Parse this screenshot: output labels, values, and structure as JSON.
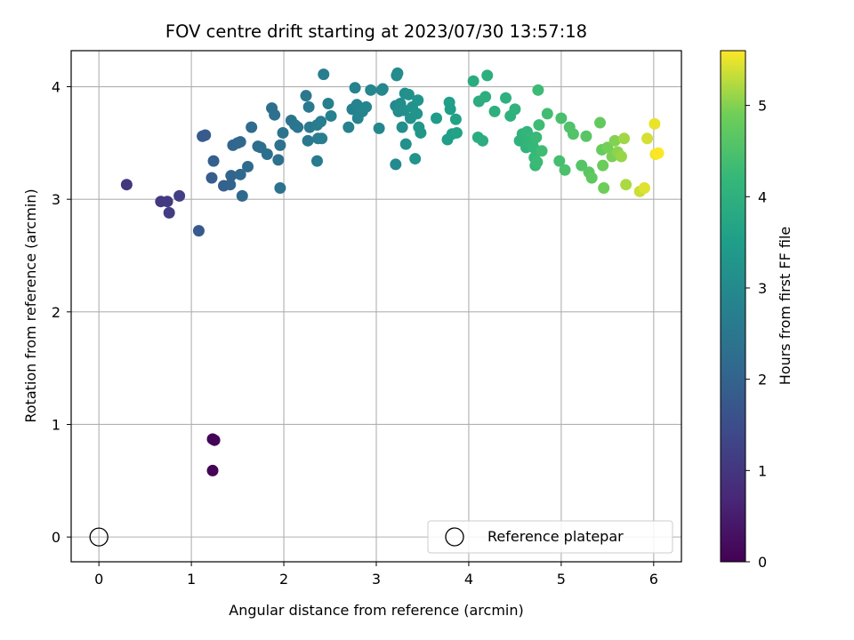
{
  "chart_data": {
    "type": "scatter",
    "title": "FOV centre drift starting at 2023/07/30 13:57:18",
    "xlabel": "Angular distance from reference (arcmin)",
    "ylabel": "Rotation from reference (arcmin)",
    "xlim": [
      -0.3,
      6.3
    ],
    "ylim": [
      -0.22,
      4.32
    ],
    "xticks": [
      "0",
      "1",
      "2",
      "3",
      "4",
      "5",
      "6"
    ],
    "yticks": [
      "0",
      "1",
      "2",
      "3",
      "4"
    ],
    "grid": true,
    "legend": {
      "placement": "lower-right",
      "label": "Reference platepar"
    },
    "reference_point": {
      "x": 0,
      "y": 0
    },
    "colorbar": {
      "label": "Hours from first FF file",
      "colormap": "viridis",
      "range": [
        0,
        5.6
      ],
      "ticks": [
        "0",
        "1",
        "2",
        "3",
        "4",
        "5"
      ]
    },
    "series": [
      {
        "points": [
          [
            1.23,
            0.59,
            0.05
          ],
          [
            1.23,
            0.87,
            0.06
          ],
          [
            1.25,
            0.86,
            0.08
          ],
          [
            0.3,
            3.13,
            1.0
          ],
          [
            0.67,
            2.98,
            1.05
          ],
          [
            0.74,
            2.98,
            1.1
          ],
          [
            0.76,
            2.88,
            1.15
          ],
          [
            0.87,
            3.03,
            1.2
          ],
          [
            1.08,
            2.72,
            1.75
          ],
          [
            1.12,
            3.56,
            1.78
          ],
          [
            1.15,
            3.57,
            1.8
          ],
          [
            1.22,
            3.19,
            1.85
          ],
          [
            1.24,
            3.34,
            1.9
          ],
          [
            1.35,
            3.12,
            1.95
          ],
          [
            1.42,
            3.13,
            2.0
          ],
          [
            1.43,
            3.21,
            2.02
          ],
          [
            1.45,
            3.48,
            2.05
          ],
          [
            1.5,
            3.5,
            2.08
          ],
          [
            1.53,
            3.51,
            2.1
          ],
          [
            1.53,
            3.22,
            2.12
          ],
          [
            1.55,
            3.03,
            2.14
          ],
          [
            1.61,
            3.29,
            2.16
          ],
          [
            1.65,
            3.64,
            2.2
          ],
          [
            1.72,
            3.47,
            2.24
          ],
          [
            1.75,
            3.46,
            2.26
          ],
          [
            1.82,
            3.4,
            2.28
          ],
          [
            1.87,
            3.81,
            2.3
          ],
          [
            1.9,
            3.75,
            2.32
          ],
          [
            1.94,
            3.35,
            2.34
          ],
          [
            1.96,
            3.48,
            2.36
          ],
          [
            1.96,
            3.1,
            2.38
          ],
          [
            1.99,
            3.59,
            2.4
          ],
          [
            2.08,
            3.7,
            2.42
          ],
          [
            2.12,
            3.66,
            2.45
          ],
          [
            2.15,
            3.64,
            2.48
          ],
          [
            2.24,
            3.92,
            2.5
          ],
          [
            2.26,
            3.52,
            2.52
          ],
          [
            2.27,
            3.82,
            2.55
          ],
          [
            2.28,
            3.64,
            2.57
          ],
          [
            2.36,
            3.66,
            2.6
          ],
          [
            2.36,
            3.34,
            2.62
          ],
          [
            2.37,
            3.54,
            2.64
          ],
          [
            2.4,
            3.69,
            2.66
          ],
          [
            2.41,
            3.54,
            2.68
          ],
          [
            2.43,
            4.11,
            2.7
          ],
          [
            2.48,
            3.85,
            2.72
          ],
          [
            2.51,
            3.74,
            2.74
          ],
          [
            2.7,
            3.64,
            2.76
          ],
          [
            2.74,
            3.8,
            2.78
          ],
          [
            2.77,
            3.99,
            2.8
          ],
          [
            2.79,
            3.84,
            2.82
          ],
          [
            2.8,
            3.72,
            2.84
          ],
          [
            2.85,
            3.78,
            2.86
          ],
          [
            2.89,
            3.82,
            2.88
          ],
          [
            2.94,
            3.97,
            2.9
          ],
          [
            3.03,
            3.63,
            2.92
          ],
          [
            3.06,
            3.97,
            2.94
          ],
          [
            3.07,
            3.98,
            2.96
          ],
          [
            3.21,
            3.83,
            2.98
          ],
          [
            3.21,
            3.31,
            3.0
          ],
          [
            3.22,
            4.1,
            3.02
          ],
          [
            3.23,
            4.12,
            3.04
          ],
          [
            3.24,
            3.78,
            3.06
          ],
          [
            3.26,
            3.85,
            3.08
          ],
          [
            3.28,
            3.64,
            3.1
          ],
          [
            3.3,
            3.79,
            3.12
          ],
          [
            3.31,
            3.94,
            3.14
          ],
          [
            3.32,
            3.49,
            3.16
          ],
          [
            3.35,
            3.93,
            3.18
          ],
          [
            3.37,
            3.72,
            3.2
          ],
          [
            3.39,
            3.82,
            3.22
          ],
          [
            3.42,
            3.36,
            3.24
          ],
          [
            3.44,
            3.76,
            3.26
          ],
          [
            3.45,
            3.88,
            3.28
          ],
          [
            3.46,
            3.64,
            3.3
          ],
          [
            3.48,
            3.59,
            3.32
          ],
          [
            3.65,
            3.72,
            3.45
          ],
          [
            3.77,
            3.53,
            3.5
          ],
          [
            3.79,
            3.86,
            3.52
          ],
          [
            3.8,
            3.8,
            3.54
          ],
          [
            3.82,
            3.58,
            3.56
          ],
          [
            3.86,
            3.71,
            3.58
          ],
          [
            3.87,
            3.59,
            3.6
          ],
          [
            4.05,
            4.05,
            3.85
          ],
          [
            4.1,
            3.55,
            3.88
          ],
          [
            4.11,
            3.87,
            3.9
          ],
          [
            4.15,
            3.52,
            3.92
          ],
          [
            4.18,
            3.91,
            3.94
          ],
          [
            4.2,
            4.1,
            3.96
          ],
          [
            4.28,
            3.78,
            3.98
          ],
          [
            4.4,
            3.9,
            4.0
          ],
          [
            4.45,
            3.74,
            4.02
          ],
          [
            4.5,
            3.8,
            4.04
          ],
          [
            4.55,
            3.52,
            4.06
          ],
          [
            4.58,
            3.58,
            4.08
          ],
          [
            4.62,
            3.46,
            4.1
          ],
          [
            4.63,
            3.6,
            4.12
          ],
          [
            4.65,
            3.5,
            4.14
          ],
          [
            4.67,
            3.55,
            4.16
          ],
          [
            4.69,
            3.51,
            4.18
          ],
          [
            4.7,
            3.46,
            4.2
          ],
          [
            4.71,
            3.37,
            4.22
          ],
          [
            4.72,
            3.3,
            4.24
          ],
          [
            4.73,
            3.55,
            4.26
          ],
          [
            4.74,
            3.33,
            4.28
          ],
          [
            4.75,
            3.97,
            4.3
          ],
          [
            4.76,
            3.66,
            4.32
          ],
          [
            4.79,
            3.43,
            4.34
          ],
          [
            4.85,
            3.76,
            4.36
          ],
          [
            4.98,
            3.34,
            4.4
          ],
          [
            5.0,
            3.72,
            4.44
          ],
          [
            5.04,
            3.26,
            4.48
          ],
          [
            5.09,
            3.64,
            4.52
          ],
          [
            5.13,
            3.58,
            4.56
          ],
          [
            5.22,
            3.3,
            4.6
          ],
          [
            5.27,
            3.56,
            4.64
          ],
          [
            5.3,
            3.24,
            4.68
          ],
          [
            5.33,
            3.19,
            4.72
          ],
          [
            5.42,
            3.68,
            4.76
          ],
          [
            5.44,
            3.44,
            4.8
          ],
          [
            5.45,
            3.3,
            4.84
          ],
          [
            5.46,
            3.1,
            4.88
          ],
          [
            5.5,
            3.46,
            4.92
          ],
          [
            5.55,
            3.38,
            4.96
          ],
          [
            5.58,
            3.52,
            5.0
          ],
          [
            5.61,
            3.42,
            5.05
          ],
          [
            5.65,
            3.38,
            5.1
          ],
          [
            5.68,
            3.54,
            5.15
          ],
          [
            5.7,
            3.13,
            5.2
          ],
          [
            5.85,
            3.07,
            5.35
          ],
          [
            5.9,
            3.1,
            5.45
          ],
          [
            5.93,
            3.54,
            5.4
          ],
          [
            6.01,
            3.67,
            5.5
          ],
          [
            6.02,
            3.4,
            5.55
          ],
          [
            6.05,
            3.41,
            5.6
          ]
        ]
      }
    ]
  }
}
